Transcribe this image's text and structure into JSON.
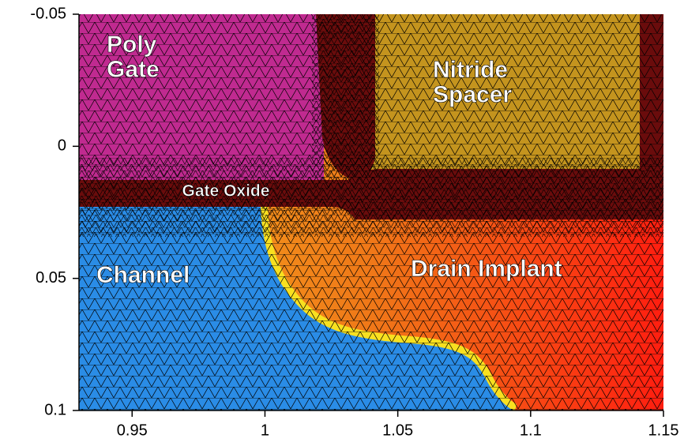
{
  "chart_data": {
    "type": "mesh",
    "xlim": [
      0.93,
      1.15
    ],
    "xticks": [
      0.95,
      1,
      1.05,
      1.1,
      1.15
    ],
    "ylim": [
      -0.05,
      0.1
    ],
    "yticks": [
      -0.05,
      0,
      0.05,
      0.1
    ],
    "y_inverted": true,
    "annotations": [
      {
        "lines": [
          "Poly",
          "Gate"
        ]
      },
      {
        "lines": [
          "Nitride",
          "Spacer"
        ]
      },
      {
        "lines": [
          "Gate Oxide"
        ]
      },
      {
        "lines": [
          "Channel"
        ]
      },
      {
        "lines": [
          "Drain Implant"
        ]
      }
    ]
  }
}
